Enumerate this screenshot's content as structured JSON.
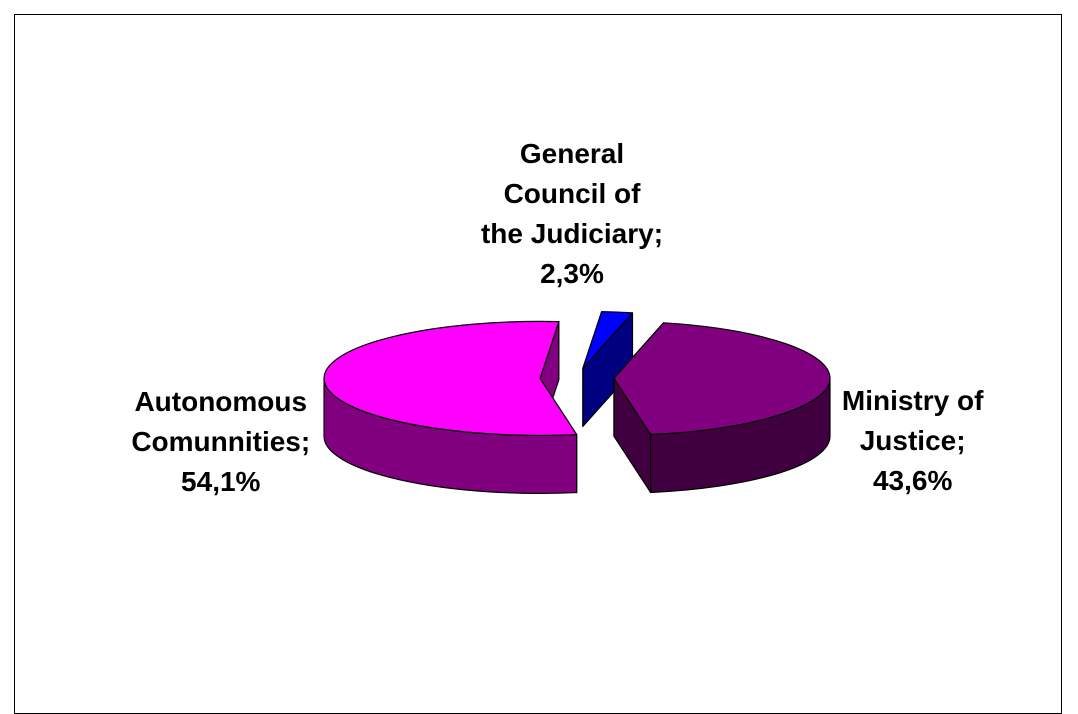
{
  "chart_data": {
    "type": "pie3d",
    "categories": [
      "General\nCouncil of\nthe Judiciary",
      "Ministry of\nJustice",
      "Autonomous\nComunnities"
    ],
    "values": [
      2.3,
      43.6,
      54.1
    ],
    "value_labels": [
      "2,3%",
      "43,6%",
      "54,1%"
    ],
    "label_separator": ";",
    "colors": [
      "#0000ff",
      "#800080",
      "#ff00ff"
    ]
  }
}
